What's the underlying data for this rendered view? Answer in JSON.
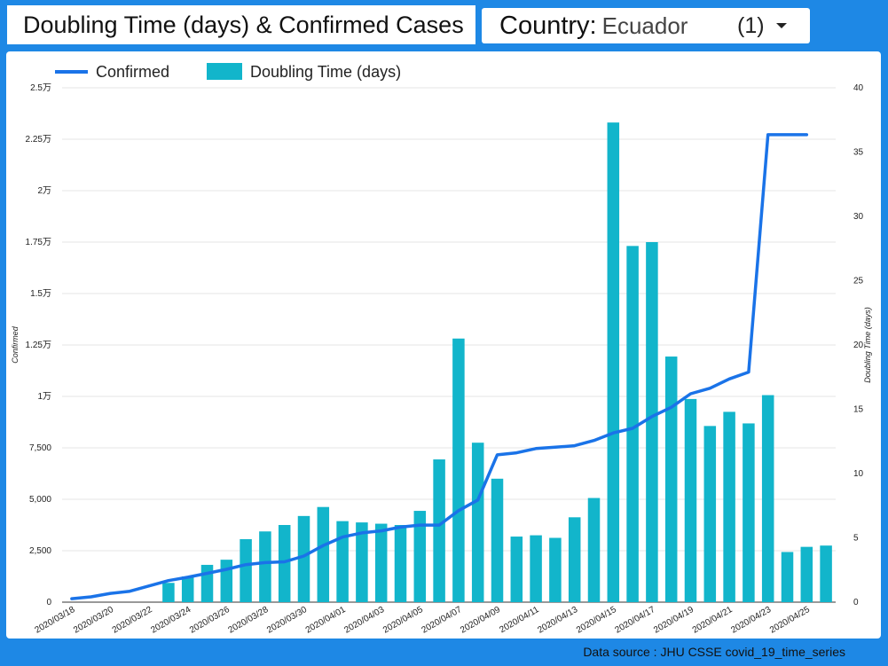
{
  "header": {
    "title": "Doubling Time (days)  & Confirmed Cases",
    "country_label": "Country",
    "country_sep": ":",
    "country_value": "Ecuador",
    "country_count": "(1)"
  },
  "footer": {
    "source": "Data source : JHU CSSE covid_19_time_series"
  },
  "colors": {
    "background": "#1e88e5",
    "line": "#1a73e8",
    "bars": "#12b5cb",
    "grid": "#e6e6e6"
  },
  "chart_data": {
    "type": "bar",
    "dates": [
      "2020/03/18",
      "2020/03/19",
      "2020/03/20",
      "2020/03/21",
      "2020/03/22",
      "2020/03/23",
      "2020/03/24",
      "2020/03/25",
      "2020/03/26",
      "2020/03/27",
      "2020/03/28",
      "2020/03/29",
      "2020/03/30",
      "2020/03/31",
      "2020/04/01",
      "2020/04/02",
      "2020/04/03",
      "2020/04/04",
      "2020/04/05",
      "2020/04/06",
      "2020/04/07",
      "2020/04/08",
      "2020/04/09",
      "2020/04/10",
      "2020/04/11",
      "2020/04/12",
      "2020/04/13",
      "2020/04/14",
      "2020/04/15",
      "2020/04/16",
      "2020/04/17",
      "2020/04/18",
      "2020/04/19",
      "2020/04/20",
      "2020/04/21",
      "2020/04/22",
      "2020/04/23",
      "2020/04/24",
      "2020/04/25",
      "2020/04/26"
    ],
    "x_tick_labels": [
      "2020/03/18",
      "2020/03/20",
      "2020/03/22",
      "2020/03/24",
      "2020/03/26",
      "2020/03/28",
      "2020/03/30",
      "2020/04/01",
      "2020/04/03",
      "2020/04/05",
      "2020/04/07",
      "2020/04/09",
      "2020/04/11",
      "2020/04/13",
      "2020/04/15",
      "2020/04/17",
      "2020/04/19",
      "2020/04/21",
      "2020/04/23",
      "2020/04/25"
    ],
    "series": [
      {
        "name": "Confirmed",
        "type": "line",
        "axis": "left",
        "values": [
          168,
          260,
          426,
          532,
          789,
          1049,
          1211,
          1403,
          1595,
          1823,
          1924,
          1962,
          2240,
          2748,
          3163,
          3368,
          3465,
          3646,
          3747,
          3747,
          4450,
          4965,
          7161,
          7257,
          7466,
          7529,
          7603,
          7858,
          8225,
          8450,
          9022,
          9468,
          10128,
          10398,
          10850,
          11183,
          22719,
          22719,
          22719,
          null
        ]
      },
      {
        "name": "Doubling Time (days)",
        "type": "bar",
        "axis": "right",
        "values": [
          null,
          null,
          null,
          null,
          null,
          1.5,
          2.0,
          2.9,
          3.3,
          4.9,
          5.5,
          6.0,
          6.7,
          7.4,
          6.3,
          6.2,
          6.1,
          6.0,
          7.1,
          11.1,
          20.5,
          12.4,
          9.6,
          5.1,
          5.2,
          5.0,
          6.6,
          8.1,
          37.3,
          27.7,
          28.0,
          19.1,
          15.8,
          13.7,
          14.8,
          13.9,
          16.1,
          3.9,
          4.3,
          4.4
        ]
      }
    ],
    "y_left": {
      "label": "Confirmed",
      "min": 0,
      "max": 25000,
      "ticks": [
        "0",
        "2,500",
        "5,000",
        "7,500",
        "1万",
        "1.25万",
        "1.5万",
        "1.75万",
        "2万",
        "2.25万",
        "2.5万"
      ]
    },
    "y_right": {
      "label": "Doubling Time (days)",
      "min": 0,
      "max": 40,
      "ticks": [
        "0",
        "5",
        "10",
        "15",
        "20",
        "25",
        "30",
        "35",
        "40"
      ]
    },
    "legend": [
      "Confirmed",
      "Doubling Time (days)"
    ],
    "legend_position": "top-left",
    "grid": true
  }
}
